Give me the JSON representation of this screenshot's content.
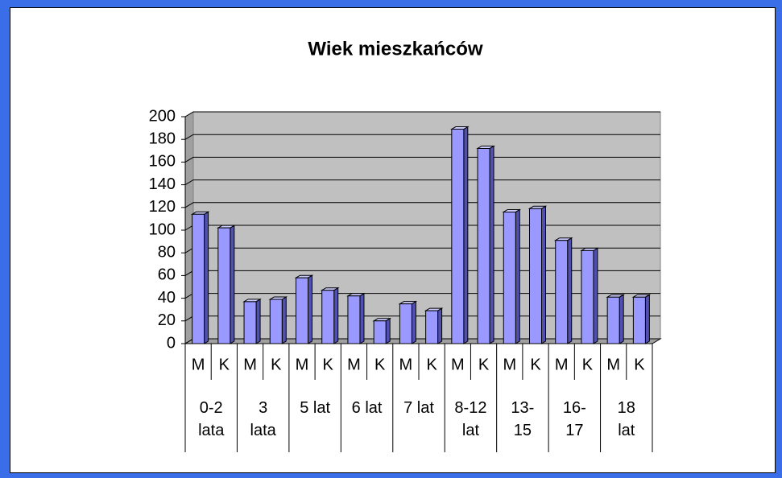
{
  "chart_data": {
    "type": "bar",
    "title": "Wiek mieszkańców",
    "categories": [
      "M",
      "K",
      "M",
      "K",
      "M",
      "K",
      "M",
      "K",
      "M",
      "K",
      "M",
      "K",
      "M",
      "K",
      "M",
      "K",
      "M",
      "K"
    ],
    "groups": [
      "0-2 lata",
      "3 lata",
      "5 lat",
      "6 lat",
      "7 lat",
      "8-12 lat",
      "13-15",
      "16-17",
      "18 lat"
    ],
    "values": [
      114,
      102,
      37,
      39,
      58,
      47,
      42,
      20,
      35,
      29,
      189,
      172,
      116,
      119,
      91,
      82,
      41,
      41
    ],
    "color": "#9999ff",
    "ylim": [
      0,
      200
    ],
    "yticks": [
      0,
      20,
      40,
      60,
      80,
      100,
      120,
      140,
      160,
      180,
      200
    ],
    "grid": true
  }
}
